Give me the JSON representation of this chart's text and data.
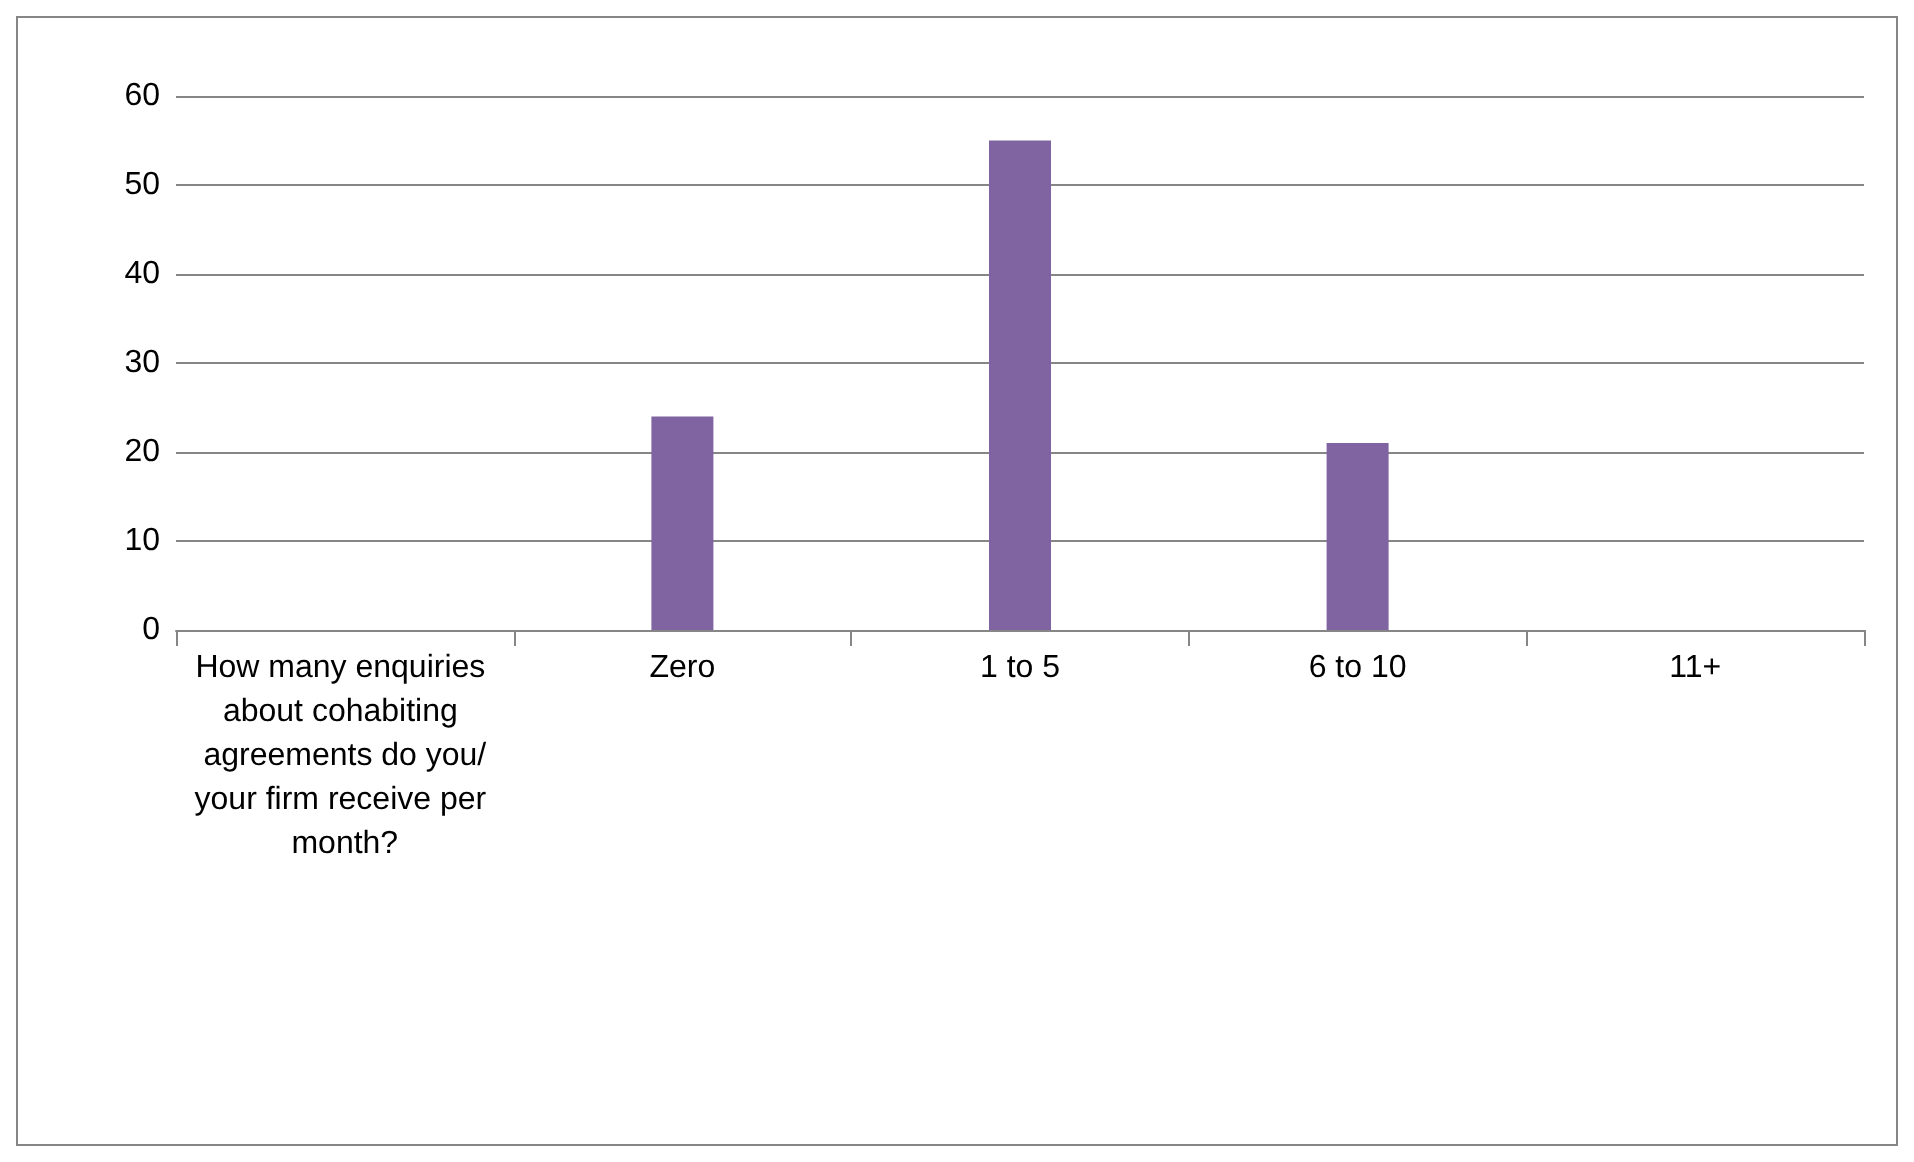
{
  "chart_data": {
    "type": "bar",
    "categories": [
      "How many enquiries about cohabiting agreements do you/your firm receive per month?",
      "Zero",
      "1 to 5",
      "6 to 10",
      "11+"
    ],
    "values": [
      null,
      24,
      55,
      21,
      null
    ],
    "color": "#8064a2",
    "ylim": [
      0,
      60
    ],
    "yticks": [
      0,
      10,
      20,
      30,
      40,
      50,
      60
    ],
    "grid": "y"
  }
}
